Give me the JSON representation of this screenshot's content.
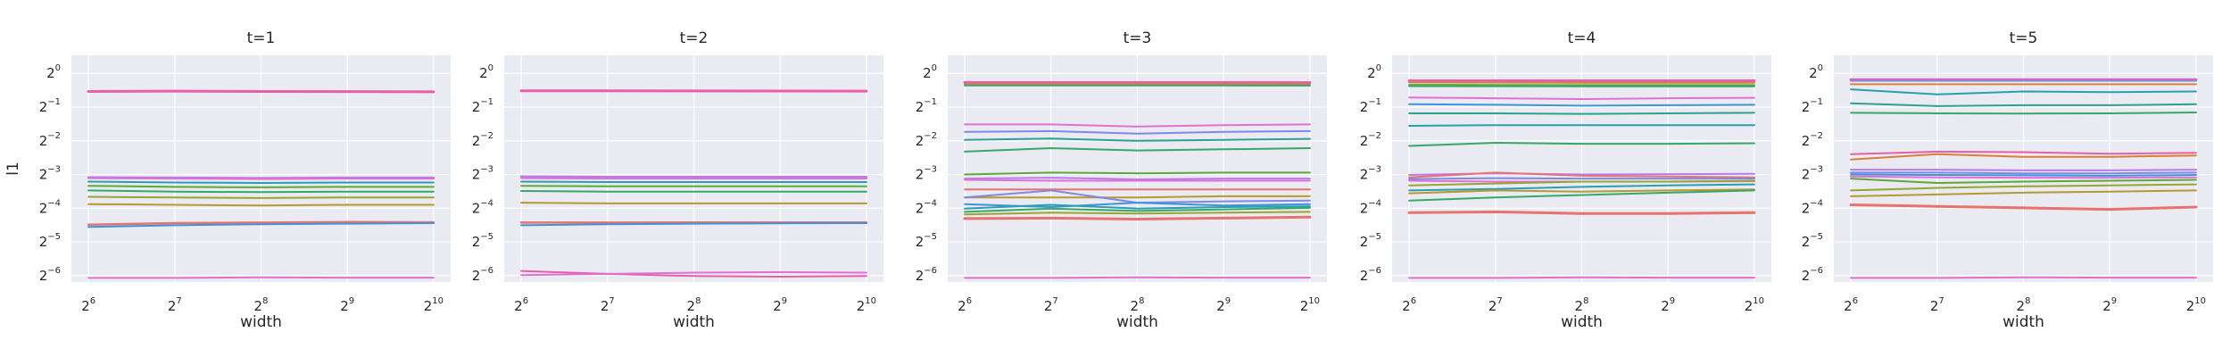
{
  "chart_data": {
    "type": "line",
    "ylabel": "l1",
    "xlabel": "width",
    "x": [
      64,
      128,
      256,
      512,
      1024
    ],
    "x_scale": "log2",
    "y_scale": "log2",
    "ylim": [
      0.0137,
      1.45
    ],
    "grid": true,
    "x_ticks": [
      {
        "base": "2",
        "exp": "6"
      },
      {
        "base": "2",
        "exp": "7"
      },
      {
        "base": "2",
        "exp": "8"
      },
      {
        "base": "2",
        "exp": "9"
      },
      {
        "base": "2",
        "exp": "10"
      }
    ],
    "y_ticks": [
      {
        "base": "2",
        "exp": "0"
      },
      {
        "base": "2",
        "exp": "−1"
      },
      {
        "base": "2",
        "exp": "−2"
      },
      {
        "base": "2",
        "exp": "−3"
      },
      {
        "base": "2",
        "exp": "−4"
      },
      {
        "base": "2",
        "exp": "−5"
      },
      {
        "base": "2",
        "exp": "−6"
      }
    ],
    "colors": {
      "background": "#eaeaf2",
      "grid": "#ffffff",
      "text": "#262626",
      "series_palette": [
        "#e6736e",
        "#d9803a",
        "#b89830",
        "#98a530",
        "#5ca838",
        "#36a868",
        "#2aa38c",
        "#2a9fb0",
        "#3d94d8",
        "#7f88e6",
        "#b87ce8",
        "#e070d6",
        "#e65fa8"
      ]
    },
    "panels": [
      {
        "title": "t=1",
        "series": [
          {
            "color": "#e65fa8",
            "width": 3,
            "values": [
              0.69,
              0.695,
              0.69,
              0.688,
              0.685
            ]
          },
          {
            "color": "#b87ce8",
            "width": 2.5,
            "values": [
              0.118,
              0.117,
              0.116,
              0.117,
              0.117
            ]
          },
          {
            "color": "#e070d6",
            "width": 2,
            "values": [
              0.116,
              0.115,
              0.114,
              0.115,
              0.115
            ]
          },
          {
            "color": "#2a9fb0",
            "width": 2,
            "values": [
              0.108,
              0.106,
              0.105,
              0.106,
              0.106
            ]
          },
          {
            "color": "#5ca838",
            "width": 2,
            "values": [
              0.099,
              0.097,
              0.096,
              0.097,
              0.097
            ]
          },
          {
            "color": "#36a868",
            "width": 2,
            "values": [
              0.09,
              0.088,
              0.087,
              0.088,
              0.088
            ]
          },
          {
            "color": "#98a530",
            "width": 2,
            "values": [
              0.079,
              0.078,
              0.077,
              0.078,
              0.078
            ]
          },
          {
            "color": "#b89830",
            "width": 2,
            "values": [
              0.068,
              0.067,
              0.066,
              0.067,
              0.067
            ]
          },
          {
            "color": "#e6736e",
            "width": 2.5,
            "values": [
              0.0445,
              0.046,
              0.0465,
              0.047,
              0.0468
            ]
          },
          {
            "color": "#3d94d8",
            "width": 2,
            "values": [
              0.0425,
              0.044,
              0.045,
              0.0455,
              0.046
            ]
          },
          {
            "color": "#e070d6",
            "width": 2,
            "values": [
              0.0149,
              0.0149,
              0.0151,
              0.015,
              0.015
            ]
          }
        ]
      },
      {
        "title": "t=2",
        "series": [
          {
            "color": "#e65fa8",
            "width": 3,
            "values": [
              0.7,
              0.698,
              0.697,
              0.696,
              0.695
            ]
          },
          {
            "color": "#b87ce8",
            "width": 2.5,
            "values": [
              0.12,
              0.119,
              0.119,
              0.119,
              0.119
            ]
          },
          {
            "color": "#e070d6",
            "width": 2,
            "values": [
              0.116,
              0.115,
              0.115,
              0.115,
              0.115
            ]
          },
          {
            "color": "#2a9fb0",
            "width": 2,
            "values": [
              0.108,
              0.107,
              0.107,
              0.107,
              0.107
            ]
          },
          {
            "color": "#5ca838",
            "width": 2,
            "values": [
              0.099,
              0.098,
              0.098,
              0.098,
              0.098
            ]
          },
          {
            "color": "#36a868",
            "width": 2,
            "values": [
              0.089,
              0.088,
              0.088,
              0.088,
              0.088
            ]
          },
          {
            "color": "#b89830",
            "width": 2,
            "values": [
              0.07,
              0.069,
              0.069,
              0.069,
              0.069
            ]
          },
          {
            "color": "#e6736e",
            "width": 2.5,
            "values": [
              0.0465,
              0.0465,
              0.0467,
              0.0467,
              0.0467
            ]
          },
          {
            "color": "#3d94d8",
            "width": 2,
            "values": [
              0.044,
              0.045,
              0.0455,
              0.0458,
              0.046
            ]
          },
          {
            "color": "#e65fa8",
            "width": 2,
            "values": [
              0.0172,
              0.0162,
              0.0155,
              0.0153,
              0.0155
            ]
          },
          {
            "color": "#e070d6",
            "width": 2,
            "values": [
              0.0158,
              0.0162,
              0.0166,
              0.0168,
              0.0166
            ]
          }
        ]
      },
      {
        "title": "t=3",
        "series": [
          {
            "color": "#e65fa8",
            "width": 3,
            "values": [
              0.83,
              0.83,
              0.83,
              0.83,
              0.828
            ]
          },
          {
            "color": "#d9803a",
            "width": 2,
            "values": [
              0.8,
              0.8,
              0.8,
              0.8,
              0.798
            ]
          },
          {
            "color": "#36a868",
            "width": 2,
            "values": [
              0.78,
              0.78,
              0.78,
              0.78,
              0.778
            ]
          },
          {
            "color": "#e070d6",
            "width": 2,
            "values": [
              0.35,
              0.35,
              0.335,
              0.345,
              0.35
            ]
          },
          {
            "color": "#7f88e6",
            "width": 2,
            "values": [
              0.3,
              0.305,
              0.29,
              0.3,
              0.305
            ]
          },
          {
            "color": "#2aa38c",
            "width": 2,
            "values": [
              0.255,
              0.262,
              0.25,
              0.255,
              0.26
            ]
          },
          {
            "color": "#36a868",
            "width": 2,
            "values": [
              0.2,
              0.215,
              0.205,
              0.21,
              0.215
            ]
          },
          {
            "color": "#5ca838",
            "width": 2,
            "values": [
              0.125,
              0.13,
              0.128,
              0.13,
              0.13
            ]
          },
          {
            "color": "#b87ce8",
            "width": 2,
            "values": [
              0.115,
              0.117,
              0.113,
              0.115,
              0.115
            ]
          },
          {
            "color": "#e070d6",
            "width": 2,
            "values": [
              0.112,
              0.11,
              0.11,
              0.11,
              0.11
            ]
          },
          {
            "color": "#e6736e",
            "width": 2,
            "values": [
              0.092,
              0.092,
              0.092,
              0.092,
              0.092
            ]
          },
          {
            "color": "#b89830",
            "width": 2,
            "values": [
              0.078,
              0.078,
              0.078,
              0.08,
              0.08
            ]
          },
          {
            "color": "#7f88e6",
            "width": 2,
            "values": [
              0.078,
              0.09,
              0.07,
              0.072,
              0.073
            ]
          },
          {
            "color": "#3d94d8",
            "width": 2,
            "values": [
              0.068,
              0.064,
              0.07,
              0.066,
              0.068
            ]
          },
          {
            "color": "#2a9fb0",
            "width": 2,
            "values": [
              0.062,
              0.067,
              0.062,
              0.064,
              0.065
            ]
          },
          {
            "color": "#36a868",
            "width": 2,
            "values": [
              0.058,
              0.062,
              0.059,
              0.061,
              0.063
            ]
          },
          {
            "color": "#98a530",
            "width": 2,
            "values": [
              0.055,
              0.057,
              0.056,
              0.057,
              0.058
            ]
          },
          {
            "color": "#e6736e",
            "width": 3,
            "values": [
              0.0505,
              0.051,
              0.05,
              0.051,
              0.052
            ]
          },
          {
            "color": "#e070d6",
            "width": 2,
            "values": [
              0.0149,
              0.0149,
              0.0151,
              0.015,
              0.015
            ]
          }
        ]
      },
      {
        "title": "t=4",
        "series": [
          {
            "color": "#e65fa8",
            "width": 3,
            "values": [
              0.86,
              0.86,
              0.86,
              0.86,
              0.86
            ]
          },
          {
            "color": "#d9803a",
            "width": 2,
            "values": [
              0.83,
              0.828,
              0.826,
              0.826,
              0.826
            ]
          },
          {
            "color": "#5ca838",
            "width": 2,
            "values": [
              0.79,
              0.788,
              0.786,
              0.786,
              0.786
            ]
          },
          {
            "color": "#36a868",
            "width": 2,
            "values": [
              0.77,
              0.768,
              0.766,
              0.766,
              0.766
            ]
          },
          {
            "color": "#e070d6",
            "width": 2,
            "values": [
              0.61,
              0.6,
              0.59,
              0.6,
              0.605
            ]
          },
          {
            "color": "#3d94d8",
            "width": 2,
            "values": [
              0.53,
              0.525,
              0.515,
              0.52,
              0.525
            ]
          },
          {
            "color": "#2aa38c",
            "width": 2,
            "values": [
              0.44,
              0.44,
              0.435,
              0.44,
              0.445
            ]
          },
          {
            "color": "#2a9fb0",
            "width": 2,
            "values": [
              0.34,
              0.345,
              0.345,
              0.345,
              0.345
            ]
          },
          {
            "color": "#36a868",
            "width": 2,
            "values": [
              0.225,
              0.24,
              0.235,
              0.235,
              0.238
            ]
          },
          {
            "color": "#b87ce8",
            "width": 2,
            "values": [
              0.124,
              0.128,
              0.125,
              0.126,
              0.127
            ]
          },
          {
            "color": "#e6736e",
            "width": 2,
            "values": [
              0.118,
              0.13,
              0.122,
              0.12,
              0.118
            ]
          },
          {
            "color": "#7f88e6",
            "width": 2,
            "values": [
              0.114,
              0.116,
              0.115,
              0.115,
              0.115
            ]
          },
          {
            "color": "#e070d6",
            "width": 2,
            "values": [
              0.11,
              0.108,
              0.108,
              0.108,
              0.109
            ]
          },
          {
            "color": "#98a530",
            "width": 2,
            "values": [
              0.1,
              0.104,
              0.108,
              0.108,
              0.11
            ]
          },
          {
            "color": "#2a9fb0",
            "width": 2,
            "values": [
              0.09,
              0.093,
              0.097,
              0.1,
              0.102
            ]
          },
          {
            "color": "#b89830",
            "width": 2,
            "values": [
              0.085,
              0.09,
              0.088,
              0.09,
              0.092
            ]
          },
          {
            "color": "#36a868",
            "width": 2,
            "values": [
              0.073,
              0.078,
              0.082,
              0.086,
              0.09
            ]
          },
          {
            "color": "#e6736e",
            "width": 3,
            "values": [
              0.057,
              0.058,
              0.056,
              0.056,
              0.057
            ]
          },
          {
            "color": "#e070d6",
            "width": 2,
            "values": [
              0.0149,
              0.0149,
              0.0151,
              0.015,
              0.015
            ]
          }
        ]
      },
      {
        "title": "t=5",
        "series": [
          {
            "color": "#e65fa8",
            "width": 3,
            "values": [
              0.88,
              0.88,
              0.88,
              0.88,
              0.88
            ]
          },
          {
            "color": "#7f88e6",
            "width": 2,
            "values": [
              0.86,
              0.86,
              0.86,
              0.86,
              0.86
            ]
          },
          {
            "color": "#d9803a",
            "width": 2,
            "values": [
              0.8,
              0.8,
              0.8,
              0.8,
              0.8
            ]
          },
          {
            "color": "#2a9fb0",
            "width": 2,
            "values": [
              0.72,
              0.65,
              0.69,
              0.68,
              0.69
            ]
          },
          {
            "color": "#2aa38c",
            "width": 2,
            "values": [
              0.54,
              0.51,
              0.52,
              0.52,
              0.53
            ]
          },
          {
            "color": "#36a868",
            "width": 2,
            "values": [
              0.445,
              0.44,
              0.438,
              0.44,
              0.448
            ]
          },
          {
            "color": "#e65fa8",
            "width": 2,
            "values": [
              0.19,
              0.2,
              0.198,
              0.192,
              0.195
            ]
          },
          {
            "color": "#d9803a",
            "width": 2,
            "values": [
              0.17,
              0.19,
              0.18,
              0.18,
              0.185
            ]
          },
          {
            "color": "#b87ce8",
            "width": 2,
            "values": [
              0.138,
              0.138,
              0.136,
              0.136,
              0.138
            ]
          },
          {
            "color": "#7f88e6",
            "width": 2,
            "values": [
              0.13,
              0.13,
              0.128,
              0.128,
              0.13
            ]
          },
          {
            "color": "#3d94d8",
            "width": 2,
            "values": [
              0.125,
              0.124,
              0.123,
              0.122,
              0.124
            ]
          },
          {
            "color": "#e070d6",
            "width": 2,
            "values": [
              0.12,
              0.118,
              0.117,
              0.117,
              0.118
            ]
          },
          {
            "color": "#5ca838",
            "width": 2,
            "values": [
              0.115,
              0.105,
              0.108,
              0.11,
              0.112
            ]
          },
          {
            "color": "#98a530",
            "width": 2,
            "values": [
              0.09,
              0.095,
              0.098,
              0.1,
              0.102
            ]
          },
          {
            "color": "#b89830",
            "width": 2,
            "values": [
              0.08,
              0.083,
              0.086,
              0.088,
              0.09
            ]
          },
          {
            "color": "#e6736e",
            "width": 3,
            "values": [
              0.067,
              0.065,
              0.063,
              0.061,
              0.064
            ]
          },
          {
            "color": "#e070d6",
            "width": 2,
            "values": [
              0.0149,
              0.0149,
              0.0151,
              0.015,
              0.015
            ]
          }
        ]
      }
    ]
  }
}
